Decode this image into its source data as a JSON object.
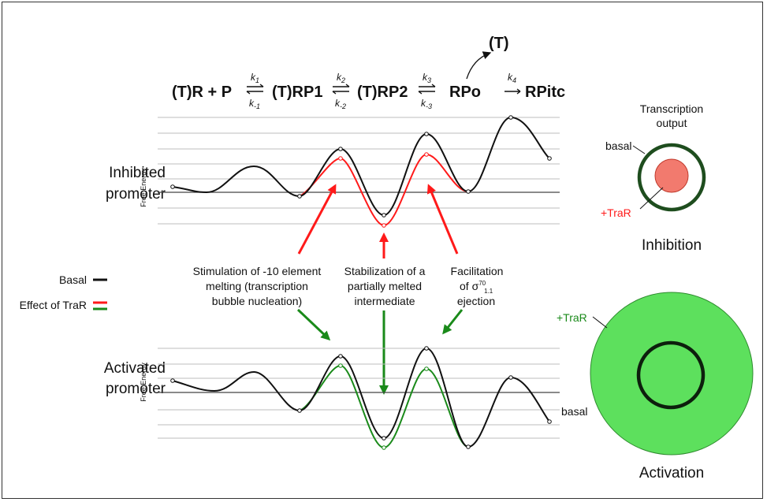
{
  "scheme": {
    "terms": [
      "(T)R + P",
      "(T)RP1",
      "(T)RP2",
      "RPo",
      "RPitc"
    ],
    "branch_label": "(T)",
    "rates": [
      {
        "fwd": "k",
        "fwd_sub": "1",
        "rev": "k",
        "rev_sub": "-1"
      },
      {
        "fwd": "k",
        "fwd_sub": "2",
        "rev": "k",
        "rev_sub": "-2"
      },
      {
        "fwd": "k",
        "fwd_sub": "3",
        "rev": "k",
        "rev_sub": "-3"
      }
    ],
    "final_rate": {
      "k": "k",
      "sub": "4"
    }
  },
  "panels": {
    "inhibited": {
      "line1": "Inhibited",
      "line2": "promoter",
      "axis": "Free Energy"
    },
    "activated": {
      "line1": "Activated",
      "line2": "promoter",
      "axis": "Free Energy",
      "basal_label": "basal"
    }
  },
  "legend": {
    "basal": "Basal",
    "effect": "Effect of TraR"
  },
  "annotations": {
    "a1": [
      "Stimulation of -10 element",
      "melting (transcription",
      "bubble nucleation)"
    ],
    "a2": [
      "Stabilization of a",
      "partially melted",
      "intermediate"
    ],
    "a3_line1": "Facilitation",
    "a3_line2_pre": "of σ",
    "a3_sup": "70",
    "a3_sub": "1.1",
    "a3_line3": "ejection"
  },
  "output": {
    "title_line1": "Transcription",
    "title_line2": "output",
    "basal": "basal",
    "traR": "+TraR",
    "inhibition": "Inhibition",
    "activation_traR": "+TraR",
    "activation_basal": "basal",
    "activation": "Activation"
  },
  "colors": {
    "basal": "#000000",
    "inhibit": "#ff1a1a",
    "activate": "#1a8a1a",
    "inhibit_fill": "#f27a6e",
    "activate_fill": "#5de05d",
    "basal_ring": "#1e4d1e"
  }
}
